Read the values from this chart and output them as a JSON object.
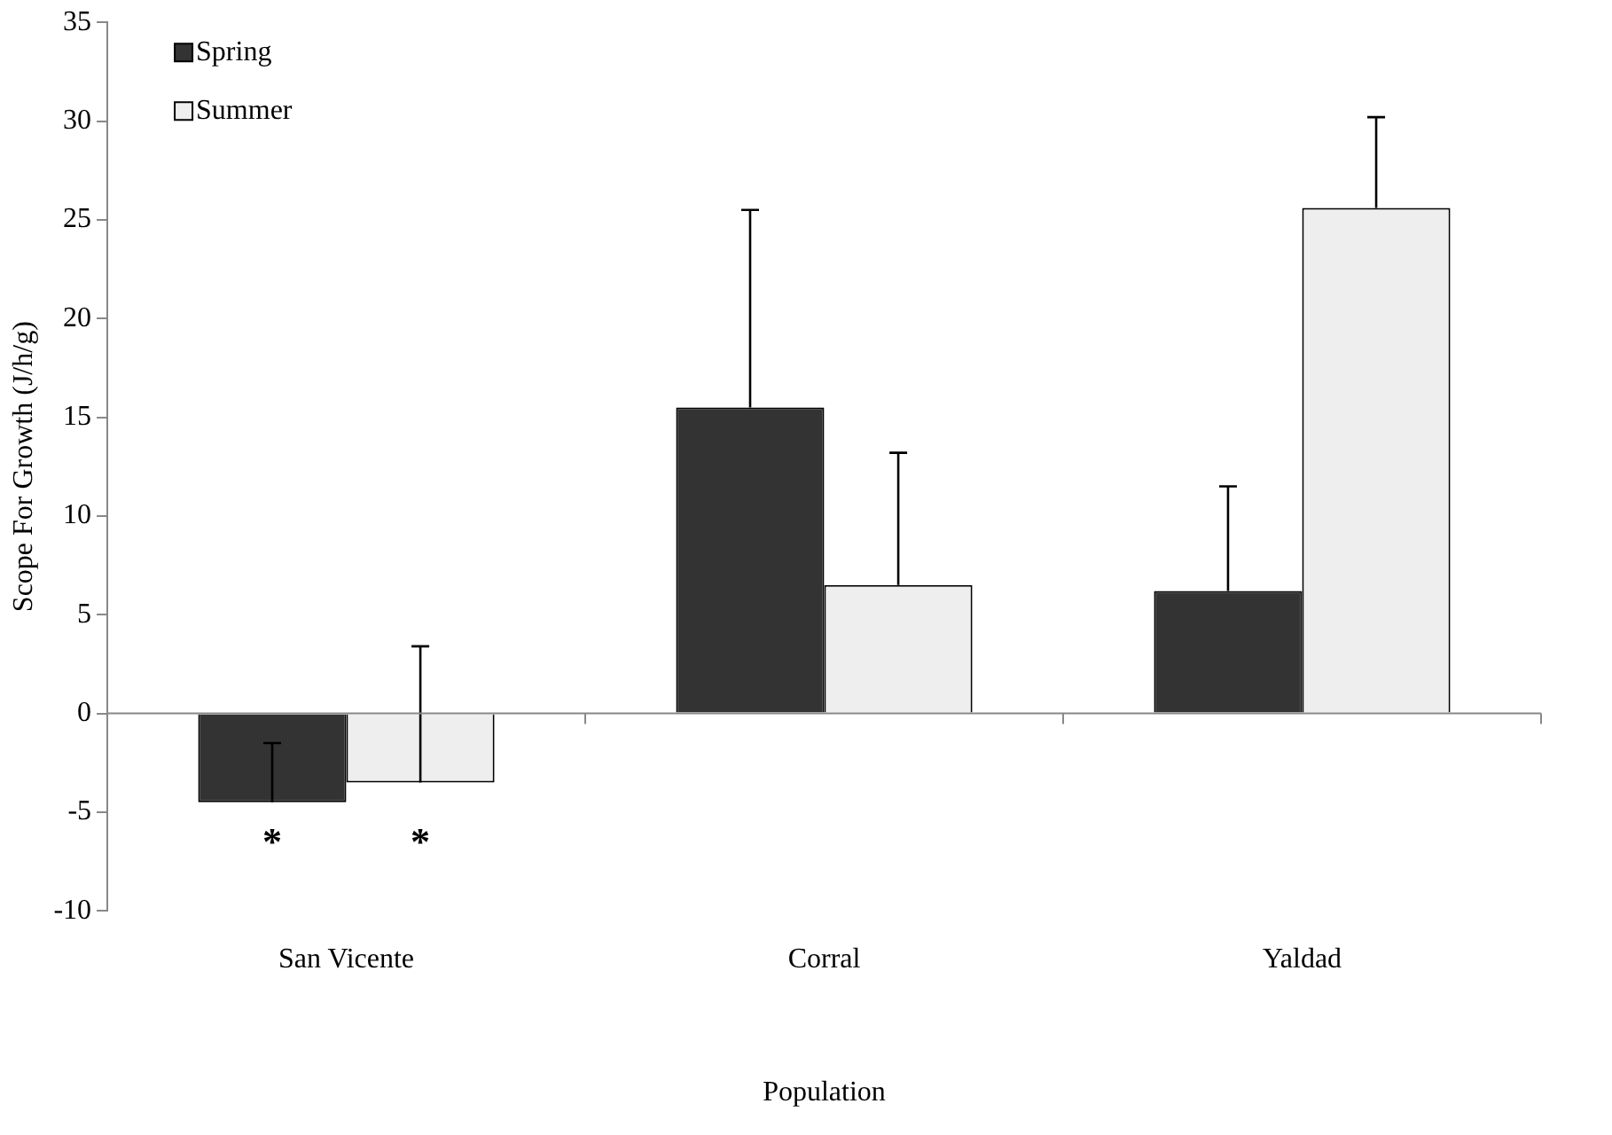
{
  "chart_data": {
    "type": "bar",
    "xlabel": "Population",
    "ylabel": "Scope For Growth (J/h/g)",
    "categories": [
      "San Vicente",
      "Corral",
      "Yaldad"
    ],
    "series": [
      {
        "name": "Spring",
        "color": "#333333",
        "values": [
          -4.5,
          15.5,
          6.2
        ],
        "errors": [
          [
            -4.5,
            -1.5
          ],
          [
            15.5,
            25.5
          ],
          [
            6.2,
            11.5
          ]
        ]
      },
      {
        "name": "Summer",
        "color": "#eeeeee",
        "values": [
          -3.5,
          6.5,
          25.6
        ],
        "errors": [
          [
            -3.5,
            3.4
          ],
          [
            6.5,
            13.2
          ],
          [
            25.6,
            30.2
          ]
        ]
      }
    ],
    "ylim": [
      -10,
      35
    ],
    "yticks": [
      -10,
      -5,
      0,
      5,
      10,
      15,
      20,
      25,
      30,
      35
    ],
    "grid": false,
    "legend": "top left",
    "ref_lines": [
      {
        "axis": "y",
        "value": 0,
        "color": "#888888"
      }
    ],
    "annotations": [
      {
        "text": "*",
        "x": "San Vicente",
        "y": -4.5
      },
      {
        "text": "*",
        "x": "San Vicente",
        "y": -3.5
      }
    ]
  }
}
